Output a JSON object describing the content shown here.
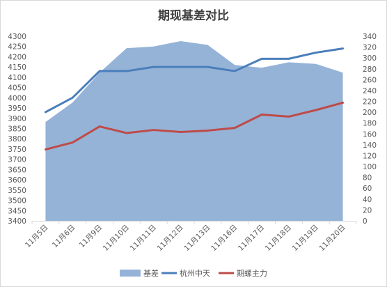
{
  "chart_data": {
    "type": "line",
    "title": "期现基差对比",
    "categories": [
      "11月5日",
      "11月6日",
      "11月9日",
      "11月10日",
      "11月11日",
      "11月12日",
      "11月13日",
      "11月16日",
      "11月17日",
      "11月18日",
      "11月19日",
      "11月20日"
    ],
    "series": [
      {
        "name": "基差",
        "type": "area",
        "axis": "right",
        "values": [
          182,
          218,
          273,
          318,
          321,
          331,
          324,
          287,
          282,
          292,
          289,
          273
        ],
        "color": "#95b3d7"
      },
      {
        "name": "杭州中天",
        "type": "line",
        "axis": "left",
        "values": [
          3930,
          4000,
          4130,
          4130,
          4150,
          4150,
          4150,
          4130,
          4190,
          4190,
          4220,
          4240
        ],
        "color": "#4a7ebb"
      },
      {
        "name": "期螺主力",
        "type": "line",
        "axis": "left",
        "values": [
          3748,
          3782,
          3860,
          3828,
          3843,
          3833,
          3840,
          3853,
          3918,
          3908,
          3940,
          3976
        ],
        "color": "#be4b48"
      }
    ],
    "y_left": {
      "min": 3400,
      "max": 4300,
      "step": 50,
      "ticks": [
        "3400",
        "3450",
        "3500",
        "3550",
        "3600",
        "3650",
        "3700",
        "3750",
        "3800",
        "3850",
        "3900",
        "3950",
        "4000",
        "4050",
        "4100",
        "4150",
        "4200",
        "4250",
        "4300"
      ]
    },
    "y_right": {
      "min": 0,
      "max": 340,
      "step": 20,
      "ticks": [
        "0",
        "20",
        "40",
        "60",
        "80",
        "100",
        "120",
        "140",
        "160",
        "180",
        "200",
        "220",
        "240",
        "260",
        "280",
        "300",
        "320",
        "340"
      ]
    },
    "grid": false,
    "legend_position": "bottom"
  }
}
